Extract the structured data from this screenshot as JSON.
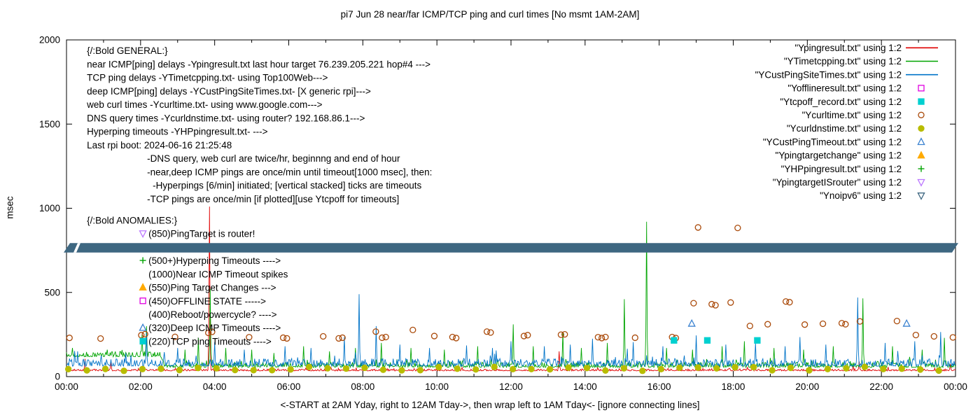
{
  "chart_data": {
    "type": "line+scatter",
    "title": "pi7 Jun 28  near/far ICMP/TCP ping and curl times [No msmt 1AM-2AM]",
    "xlabel": "<-START at 2AM Yday, right to 12AM Tday->, then wrap left to 1AM Tday<- [ignore connecting lines]",
    "ylabel": "msec",
    "xlim": [
      0,
      24
    ],
    "ylim": [
      0,
      2000
    ],
    "grid": false,
    "y_ticks": [
      {
        "v": 0,
        "label": "0"
      },
      {
        "v": 500,
        "label": "500"
      },
      {
        "v": 1000,
        "label": "1000"
      },
      {
        "v": 1500,
        "label": "1500"
      },
      {
        "v": 2000,
        "label": "2000"
      }
    ],
    "x_ticks": [
      {
        "h": 0,
        "label": "00:00"
      },
      {
        "h": 2,
        "label": "02:00"
      },
      {
        "h": 4,
        "label": "04:00"
      },
      {
        "h": 6,
        "label": "06:00"
      },
      {
        "h": 8,
        "label": "08:00"
      },
      {
        "h": 10,
        "label": "10:00"
      },
      {
        "h": 12,
        "label": "12:00"
      },
      {
        "h": 14,
        "label": "14:00"
      },
      {
        "h": 16,
        "label": "16:00"
      },
      {
        "h": 18,
        "label": "18:00"
      },
      {
        "h": 20,
        "label": "20:00"
      },
      {
        "h": 22,
        "label": "22:00"
      },
      {
        "h": 24,
        "label": "00:00"
      }
    ],
    "line_series": [
      {
        "name": "Ypingresult.txt",
        "color": "#e00000",
        "noise": 9,
        "baseline": [
          [
            0,
            34
          ],
          [
            24,
            34
          ]
        ],
        "spikes": [
          [
            0.5,
            105
          ],
          [
            1.2,
            90
          ],
          [
            3.85,
            1010
          ],
          [
            13.3,
            150
          ],
          [
            21.4,
            90
          ],
          [
            23.85,
            75
          ]
        ]
      },
      {
        "name": "YTimetcpping.txt",
        "color": "#00a400",
        "noise": 26,
        "baseline": [
          [
            0,
            118
          ],
          [
            2.55,
            118
          ],
          [
            2.65,
            55
          ],
          [
            24,
            55
          ]
        ],
        "spikes": [
          [
            0.15,
            170
          ],
          [
            1.1,
            160
          ],
          [
            2.05,
            250
          ],
          [
            2.15,
            300
          ],
          [
            3.2,
            160
          ],
          [
            3.55,
            230
          ],
          [
            3.87,
            520
          ],
          [
            4.3,
            170
          ],
          [
            5.0,
            160
          ],
          [
            5.6,
            140
          ],
          [
            6.4,
            180
          ],
          [
            7.1,
            150
          ],
          [
            7.8,
            170
          ],
          [
            8.5,
            200
          ],
          [
            9.3,
            170
          ],
          [
            10.2,
            160
          ],
          [
            11.1,
            180
          ],
          [
            12.05,
            310
          ],
          [
            12.6,
            180
          ],
          [
            13.4,
            265
          ],
          [
            13.9,
            170
          ],
          [
            14.6,
            200
          ],
          [
            15.05,
            460
          ],
          [
            15.66,
            920
          ],
          [
            16.2,
            170
          ],
          [
            16.9,
            160
          ],
          [
            17.7,
            180
          ],
          [
            18.3,
            210
          ],
          [
            19.1,
            170
          ],
          [
            19.9,
            160
          ],
          [
            20.7,
            180
          ],
          [
            21.5,
            465
          ],
          [
            22.3,
            180
          ],
          [
            23.1,
            160
          ],
          [
            23.7,
            230
          ]
        ]
      },
      {
        "name": "YCustPingSiteTimes.txt",
        "color": "#0073c8",
        "noise": 38,
        "baseline": [
          [
            0,
            62
          ],
          [
            24,
            62
          ]
        ],
        "spikes": [
          [
            0.3,
            150
          ],
          [
            1.6,
            140
          ],
          [
            2.15,
            260
          ],
          [
            3.0,
            170
          ],
          [
            4.0,
            205
          ],
          [
            4.8,
            160
          ],
          [
            5.9,
            180
          ],
          [
            6.6,
            170
          ],
          [
            7.5,
            235
          ],
          [
            7.9,
            490
          ],
          [
            8.35,
            300
          ],
          [
            9.0,
            190
          ],
          [
            9.8,
            170
          ],
          [
            10.8,
            185
          ],
          [
            11.5,
            170
          ],
          [
            12.0,
            210
          ],
          [
            12.9,
            180
          ],
          [
            13.6,
            190
          ],
          [
            14.2,
            225
          ],
          [
            15.3,
            205
          ],
          [
            16.1,
            180
          ],
          [
            17.0,
            245
          ],
          [
            17.8,
            190
          ],
          [
            18.6,
            200
          ],
          [
            19.4,
            180
          ],
          [
            19.8,
            235
          ],
          [
            20.5,
            190
          ],
          [
            21.35,
            470
          ],
          [
            22.1,
            200
          ],
          [
            22.9,
            210
          ],
          [
            23.6,
            265
          ]
        ]
      }
    ],
    "scatter_series": [
      {
        "name": "Ycurltime.txt",
        "marker": "circle",
        "color": "#aa4a0a",
        "filled": false,
        "points": [
          [
            0.08,
            230
          ],
          [
            0.92,
            226
          ],
          [
            2.02,
            246
          ],
          [
            2.12,
            252
          ],
          [
            2.93,
            236
          ],
          [
            3.83,
            260
          ],
          [
            3.93,
            266
          ],
          [
            4.93,
            234
          ],
          [
            5.85,
            231
          ],
          [
            5.95,
            227
          ],
          [
            6.93,
            239
          ],
          [
            7.35,
            227
          ],
          [
            7.45,
            231
          ],
          [
            8.35,
            267
          ],
          [
            8.52,
            231
          ],
          [
            8.62,
            235
          ],
          [
            9.35,
            277
          ],
          [
            9.93,
            241
          ],
          [
            10.42,
            235
          ],
          [
            10.52,
            229
          ],
          [
            11.35,
            267
          ],
          [
            11.45,
            262
          ],
          [
            12.35,
            241
          ],
          [
            12.45,
            246
          ],
          [
            13.35,
            249
          ],
          [
            13.45,
            251
          ],
          [
            14.35,
            234
          ],
          [
            14.45,
            229
          ],
          [
            14.55,
            235
          ],
          [
            15.35,
            231
          ],
          [
            16.35,
            235
          ],
          [
            16.45,
            229
          ],
          [
            16.93,
            436
          ],
          [
            17.05,
            886
          ],
          [
            17.42,
            430
          ],
          [
            17.52,
            424
          ],
          [
            17.93,
            440
          ],
          [
            18.12,
            883
          ],
          [
            18.45,
            301
          ],
          [
            18.93,
            311
          ],
          [
            19.42,
            446
          ],
          [
            19.52,
            442
          ],
          [
            19.93,
            309
          ],
          [
            20.42,
            314
          ],
          [
            20.93,
            317
          ],
          [
            21.03,
            311
          ],
          [
            21.42,
            328
          ],
          [
            22.42,
            330
          ],
          [
            22.93,
            247
          ],
          [
            23.42,
            239
          ],
          [
            23.93,
            233
          ]
        ]
      },
      {
        "name": "Ycurldnstime.txt",
        "marker": "circle",
        "color": "#b8bc00",
        "filled": true,
        "gen": {
          "start": 0.05,
          "end": 23.95,
          "step": 0.5,
          "base": 46,
          "jitter": 12
        }
      },
      {
        "name": "Ytcpoff_record.txt",
        "marker": "square",
        "color": "#00d0d0",
        "filled": true,
        "points": [
          [
            16.4,
            215
          ],
          [
            17.3,
            215
          ],
          [
            18.65,
            215
          ]
        ]
      },
      {
        "name": "YCustPingTimeout.txt",
        "marker": "triangle-up",
        "color": "#3b82d0",
        "filled": false,
        "points": [
          [
            16.88,
            315
          ],
          [
            22.68,
            315
          ]
        ]
      }
    ],
    "band": {
      "name": "Ynoipv6",
      "color": "#3e6781",
      "y_center": 765,
      "y_half": 28,
      "x_start": 0,
      "x_end": 24
    },
    "legend": [
      {
        "label": "\"Ypingresult.txt\" using 1:2",
        "sample": "line",
        "color": "#e00000"
      },
      {
        "label": "\"YTimetcpping.txt\" using 1:2",
        "sample": "line",
        "color": "#00a400"
      },
      {
        "label": "\"YCustPingSiteTimes.txt\" using 1:2",
        "sample": "line",
        "color": "#0073c8"
      },
      {
        "label": "\"Yofflineresult.txt\" using 1:2",
        "sample": "square",
        "color": "#e000e0",
        "filled": false
      },
      {
        "label": "\"Ytcpoff_record.txt\" using 1:2",
        "sample": "square",
        "color": "#00d0d0",
        "filled": true
      },
      {
        "label": "\"Ycurltime.txt\" using 1:2",
        "sample": "circle",
        "color": "#aa4a0a",
        "filled": false
      },
      {
        "label": "\"Ycurldnstime.txt\" using 1:2",
        "sample": "circle",
        "color": "#b8bc00",
        "filled": true
      },
      {
        "label": "\"YCustPingTimeout.txt\" using 1:2",
        "sample": "triangle-up",
        "color": "#3b82d0",
        "filled": false
      },
      {
        "label": "\"Ypingtargetchange\" using 1:2",
        "sample": "triangle-up",
        "color": "#ffaa00",
        "filled": true
      },
      {
        "label": "\"YHPpingresult.txt\" using 1:2",
        "sample": "plus",
        "color": "#00a400"
      },
      {
        "label": "\"YpingtargetISrouter\" using 1:2",
        "sample": "triangle-down",
        "color": "#bb77ff",
        "filled": false
      },
      {
        "label": "\"Ynoipv6\" using 1:2",
        "sample": "triangle-down",
        "color": "#3e6781",
        "filled": false
      }
    ],
    "annotations": {
      "general": {
        "x_h": 0.55,
        "y_top": 1935,
        "dy": 80,
        "lines": [
          {
            "text": "{/:Bold GENERAL:}",
            "indent": 0
          },
          {
            "text": "near ICMP[ping] delays -Ypingresult.txt last hour target 76.239.205.221 hop#4 --->",
            "indent": 0
          },
          {
            "text": "TCP ping delays -YTimetcpping.txt- using Top100Web--->",
            "indent": 0
          },
          {
            "text": "deep ICMP[ping] delays -YCustPingSiteTimes.txt- [X generic rpi]--->",
            "indent": 0
          },
          {
            "text": "web curl times -Ycurltime.txt- using www.google.com--->",
            "indent": 0
          },
          {
            "text": "DNS query times -Ycurldnstime.txt- using router? 192.168.86.1--->",
            "indent": 0
          },
          {
            "text": "Hyperping timeouts -YHPpingresult.txt- --->",
            "indent": 0
          },
          {
            "text": "Last rpi boot: 2024-06-16 21:25:48",
            "indent": 0
          },
          {
            "text": "-DNS query, web curl are twice/hr, beginnng and end of hour",
            "indent": 86
          },
          {
            "text": "-near,deep ICMP pings are once/min until timeout[1000 msec], then:",
            "indent": 86
          },
          {
            "text": "-Hyperpings [6/min] initiated; [vertical stacked] ticks are timeouts",
            "indent": 94
          },
          {
            "text": "-TCP pings are once/min [if plotted][use Ytcpoff for timeouts]",
            "indent": 86
          }
        ]
      },
      "anomalies": {
        "x_h": 0.55,
        "indent": 88,
        "lines": [
          {
            "text": "{/:Bold ANOMALIES:}",
            "y": 928,
            "indent": 0
          },
          {
            "text": "(850)PingTarget is router!",
            "y": 848,
            "marker": "triangle-down",
            "color": "#bb77ff",
            "filled": false
          },
          {
            "text": "(500+)Hyperping Timeouts ---->",
            "y": 688,
            "marker": "plus",
            "color": "#00a400"
          },
          {
            "text": "(1000)Near ICMP Timeout spikes",
            "y": 608
          },
          {
            "text": "(550)Ping Target Changes --->",
            "y": 528,
            "marker": "triangle-up",
            "color": "#ffaa00",
            "filled": true
          },
          {
            "text": "(450)OFFLINE STATE ----->",
            "y": 448,
            "marker": "square",
            "color": "#e000e0",
            "filled": false
          },
          {
            "text": "(400)Reboot/powercycle? ---->",
            "y": 368
          },
          {
            "text": "(320)Deep ICMP Timeouts ---->",
            "y": 288,
            "marker": "triangle-up",
            "color": "#3b82d0",
            "filled": false
          },
          {
            "text": "(220)TCP ping Timeouts ---->",
            "y": 208,
            "marker": "square",
            "color": "#00d0d0",
            "filled": true
          }
        ]
      }
    }
  }
}
